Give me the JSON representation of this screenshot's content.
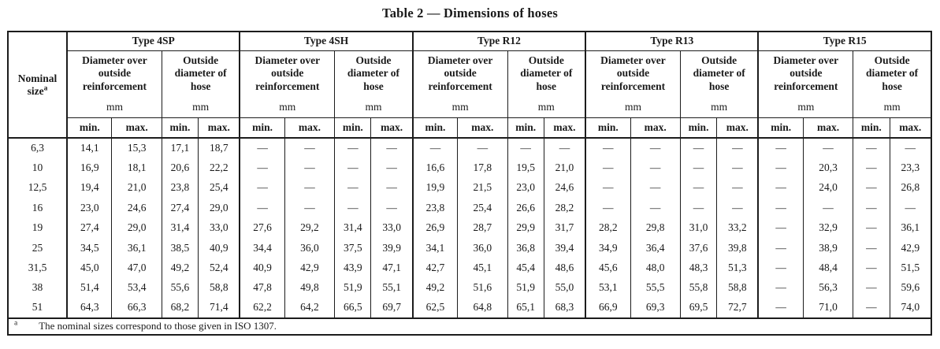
{
  "title": "Table 2 — Dimensions of hoses",
  "table": {
    "nominal": {
      "word1": "Nominal",
      "word2": "size",
      "footnote_mark": "a"
    },
    "groups": [
      {
        "label": "Type 4SP"
      },
      {
        "label": "Type 4SH"
      },
      {
        "label": "Type R12"
      },
      {
        "label": "Type R13"
      },
      {
        "label": "Type R15"
      }
    ],
    "labels": {
      "reinforcement": "Diameter over outside reinforcement",
      "hose": "Outside diameter of hose",
      "unit": "mm",
      "min": "min.",
      "max": "max."
    },
    "rows": [
      {
        "size": "6,3",
        "values": [
          "14,1",
          "15,3",
          "17,1",
          "18,7",
          "—",
          "—",
          "—",
          "—",
          "—",
          "—",
          "—",
          "—",
          "—",
          "—",
          "—",
          "—",
          "—",
          "—",
          "—",
          "—"
        ]
      },
      {
        "size": "10",
        "values": [
          "16,9",
          "18,1",
          "20,6",
          "22,2",
          "—",
          "—",
          "—",
          "—",
          "16,6",
          "17,8",
          "19,5",
          "21,0",
          "—",
          "—",
          "—",
          "—",
          "—",
          "20,3",
          "—",
          "23,3"
        ]
      },
      {
        "size": "12,5",
        "values": [
          "19,4",
          "21,0",
          "23,8",
          "25,4",
          "—",
          "—",
          "—",
          "—",
          "19,9",
          "21,5",
          "23,0",
          "24,6",
          "—",
          "—",
          "—",
          "—",
          "—",
          "24,0",
          "—",
          "26,8"
        ]
      },
      {
        "size": "16",
        "values": [
          "23,0",
          "24,6",
          "27,4",
          "29,0",
          "—",
          "—",
          "—",
          "—",
          "23,8",
          "25,4",
          "26,6",
          "28,2",
          "—",
          "—",
          "—",
          "—",
          "—",
          "—",
          "—",
          "—"
        ]
      },
      {
        "size": "19",
        "values": [
          "27,4",
          "29,0",
          "31,4",
          "33,0",
          "27,6",
          "29,2",
          "31,4",
          "33,0",
          "26,9",
          "28,7",
          "29,9",
          "31,7",
          "28,2",
          "29,8",
          "31,0",
          "33,2",
          "—",
          "32,9",
          "—",
          "36,1"
        ]
      },
      {
        "size": "25",
        "values": [
          "34,5",
          "36,1",
          "38,5",
          "40,9",
          "34,4",
          "36,0",
          "37,5",
          "39,9",
          "34,1",
          "36,0",
          "36,8",
          "39,4",
          "34,9",
          "36,4",
          "37,6",
          "39,8",
          "—",
          "38,9",
          "—",
          "42,9"
        ]
      },
      {
        "size": "31,5",
        "values": [
          "45,0",
          "47,0",
          "49,2",
          "52,4",
          "40,9",
          "42,9",
          "43,9",
          "47,1",
          "42,7",
          "45,1",
          "45,4",
          "48,6",
          "45,6",
          "48,0",
          "48,3",
          "51,3",
          "—",
          "48,4",
          "—",
          "51,5"
        ]
      },
      {
        "size": "38",
        "values": [
          "51,4",
          "53,4",
          "55,6",
          "58,8",
          "47,8",
          "49,8",
          "51,9",
          "55,1",
          "49,2",
          "51,6",
          "51,9",
          "55,0",
          "53,1",
          "55,5",
          "55,8",
          "58,8",
          "—",
          "56,3",
          "—",
          "59,6"
        ]
      },
      {
        "size": "51",
        "values": [
          "64,3",
          "66,3",
          "68,2",
          "71,4",
          "62,2",
          "64,2",
          "66,5",
          "69,7",
          "62,5",
          "64,8",
          "65,1",
          "68,3",
          "66,9",
          "69,3",
          "69,5",
          "72,7",
          "—",
          "71,0",
          "—",
          "74,0"
        ]
      }
    ],
    "footnote": {
      "mark": "a",
      "text": "The nominal sizes correspond to those given in ISO 1307."
    }
  }
}
